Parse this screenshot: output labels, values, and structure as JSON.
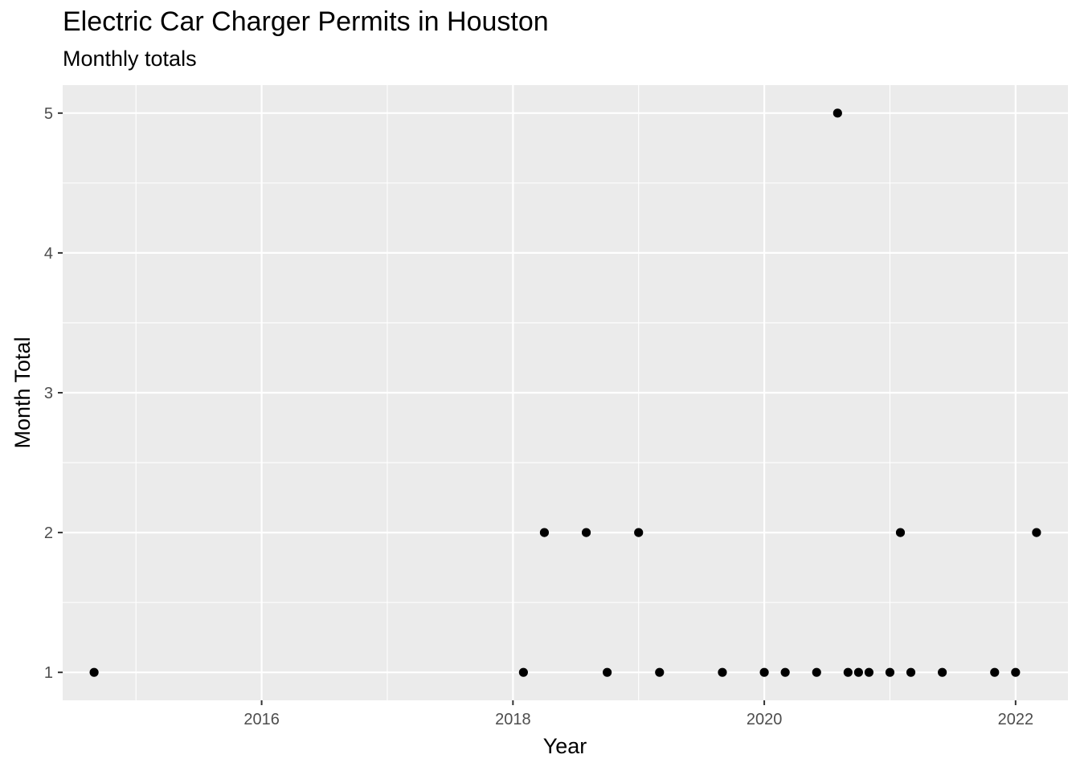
{
  "chart_data": {
    "type": "scatter",
    "title": "Electric Car Charger Permits in Houston",
    "subtitle": "Monthly totals",
    "xlabel": "Year",
    "ylabel": "Month Total",
    "x_ticks": [
      "2016",
      "2018",
      "2020",
      "2022"
    ],
    "y_ticks": [
      "1",
      "2",
      "3",
      "4",
      "5"
    ],
    "xlim": [
      "2014-06",
      "2022-06"
    ],
    "ylim": [
      0.8,
      5.2
    ],
    "grid": true,
    "legend": "none",
    "colors": {
      "panel": "#ebebeb",
      "grid": "#ffffff",
      "point": "#000000",
      "tick_text": "#4d4d4d"
    },
    "points": [
      {
        "x": "2014-09",
        "y": 1
      },
      {
        "x": "2018-02",
        "y": 1
      },
      {
        "x": "2018-04",
        "y": 2
      },
      {
        "x": "2018-08",
        "y": 2
      },
      {
        "x": "2018-10",
        "y": 1
      },
      {
        "x": "2019-01",
        "y": 2
      },
      {
        "x": "2019-03",
        "y": 1
      },
      {
        "x": "2019-09",
        "y": 1
      },
      {
        "x": "2020-01",
        "y": 1
      },
      {
        "x": "2020-03",
        "y": 1
      },
      {
        "x": "2020-06",
        "y": 1
      },
      {
        "x": "2020-08",
        "y": 5
      },
      {
        "x": "2020-09",
        "y": 1
      },
      {
        "x": "2020-10",
        "y": 1
      },
      {
        "x": "2020-11",
        "y": 1
      },
      {
        "x": "2021-01",
        "y": 1
      },
      {
        "x": "2021-02",
        "y": 2
      },
      {
        "x": "2021-03",
        "y": 1
      },
      {
        "x": "2021-06",
        "y": 1
      },
      {
        "x": "2021-11",
        "y": 1
      },
      {
        "x": "2022-01",
        "y": 1
      },
      {
        "x": "2022-03",
        "y": 2
      }
    ]
  }
}
